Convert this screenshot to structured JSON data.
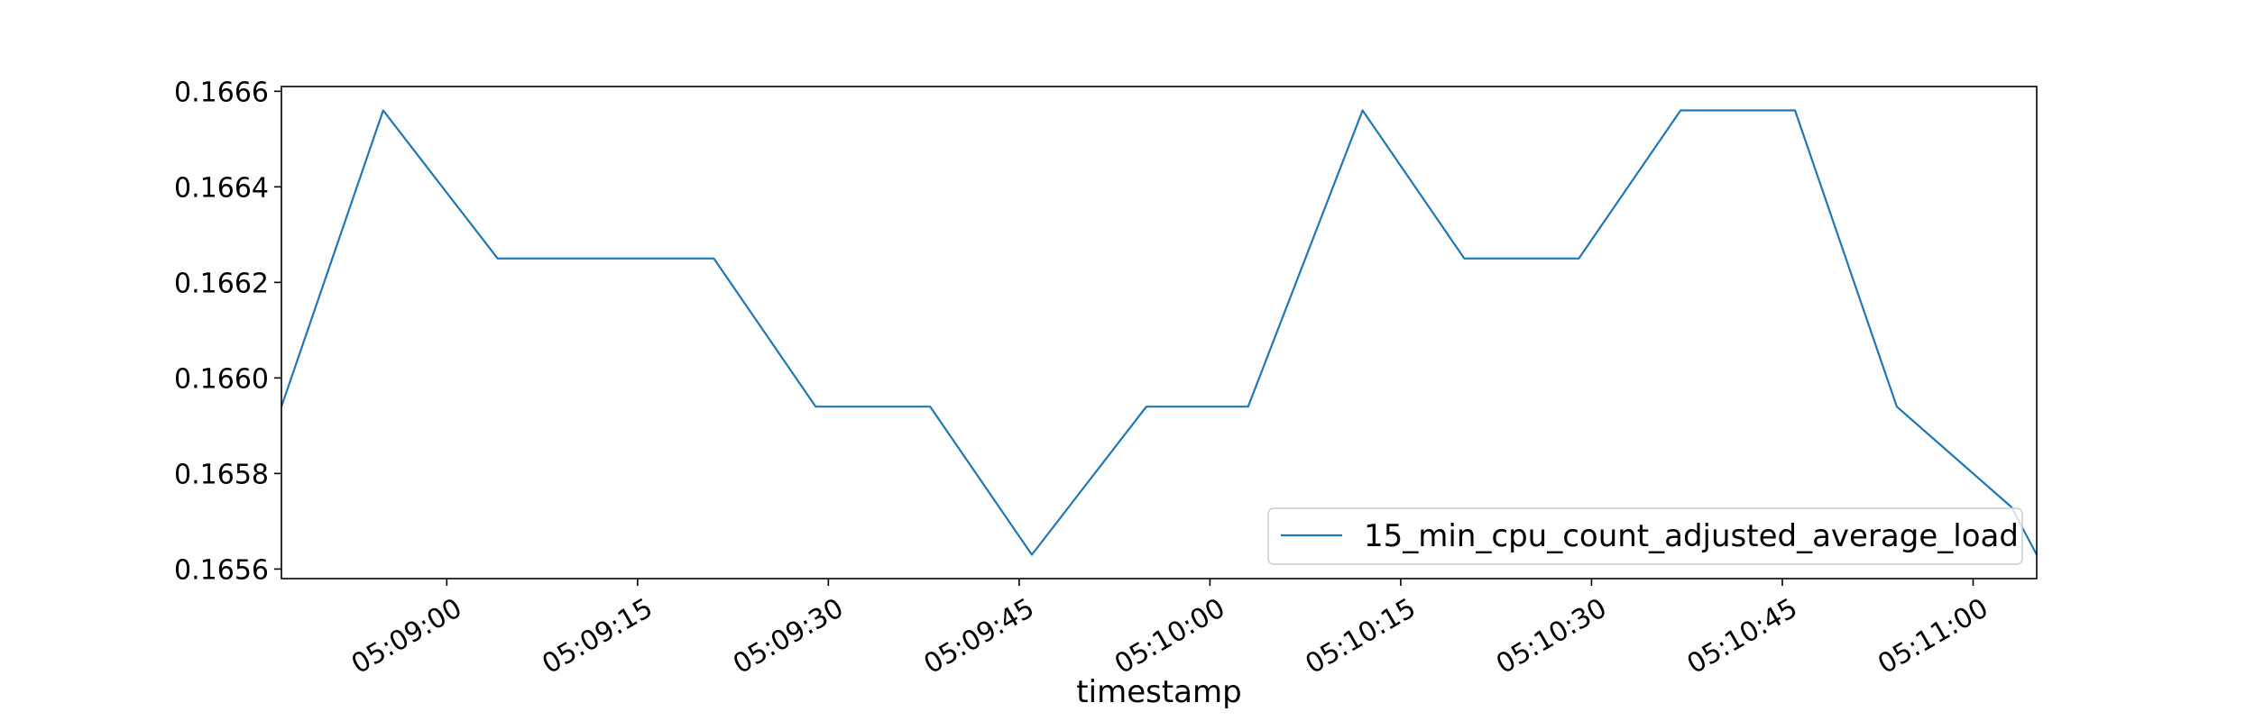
{
  "chart_data": {
    "type": "line",
    "title": "",
    "xlabel": "timestamp",
    "ylabel": "",
    "x_start": "05:08:47",
    "x_end": "05:11:05",
    "xlim": [
      "05:08:47",
      "05:11:05"
    ],
    "ylim": [
      0.16558,
      0.16661
    ],
    "grid": false,
    "legend_position": "lower-right",
    "x_ticks": [
      "05:09:00",
      "05:09:15",
      "05:09:30",
      "05:09:45",
      "05:10:00",
      "05:10:15",
      "05:10:30",
      "05:10:45",
      "05:11:00"
    ],
    "y_ticks": [
      0.1656,
      0.1658,
      0.166,
      0.1662,
      0.1664,
      0.1666
    ],
    "y_tick_labels": [
      "0.1656",
      "0.1658",
      "0.1660",
      "0.1662",
      "0.1664",
      "0.1666"
    ],
    "series": [
      {
        "name": "15_min_cpu_count_adjusted_average_load",
        "color": "#1f77b4",
        "x": [
          "05:08:47",
          "05:08:55",
          "05:09:04",
          "05:09:12",
          "05:09:21",
          "05:09:29",
          "05:09:38",
          "05:09:46",
          "05:09:55",
          "05:10:03",
          "05:10:12",
          "05:10:20",
          "05:10:29",
          "05:10:37",
          "05:10:46",
          "05:10:54",
          "05:11:03",
          "05:11:05"
        ],
        "y": [
          0.16594,
          0.16656,
          0.16625,
          0.16625,
          0.16625,
          0.16594,
          0.16594,
          0.16563,
          0.16594,
          0.16594,
          0.16656,
          0.16625,
          0.16625,
          0.16656,
          0.16656,
          0.16594,
          0.16573,
          0.16563
        ]
      }
    ]
  }
}
